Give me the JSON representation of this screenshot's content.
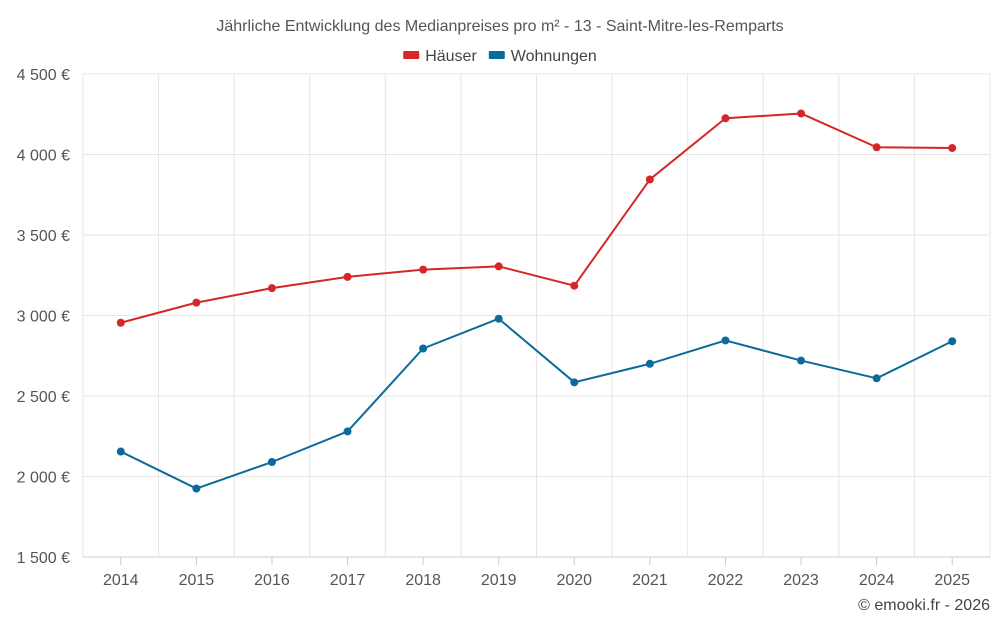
{
  "chart_data": {
    "type": "line",
    "title": "Jährliche Entwicklung des Medianpreises pro m² - 13 - Saint-Mitre-les-Remparts",
    "categories": [
      "2014",
      "2015",
      "2016",
      "2017",
      "2018",
      "2019",
      "2020",
      "2021",
      "2022",
      "2023",
      "2024",
      "2025"
    ],
    "series": [
      {
        "name": "Häuser",
        "color": "#d62728",
        "values": [
          2955,
          3080,
          3170,
          3240,
          3285,
          3305,
          3185,
          3845,
          4225,
          4255,
          4045,
          4040
        ]
      },
      {
        "name": "Wohnungen",
        "color": "#0b6a9b",
        "values": [
          2155,
          1925,
          2090,
          2280,
          2795,
          2980,
          2585,
          2700,
          2845,
          2720,
          2610,
          2840
        ]
      }
    ],
    "ylim": [
      1500,
      4500
    ],
    "yticks": [
      1500,
      2000,
      2500,
      3000,
      3500,
      4000,
      4500
    ],
    "ytick_labels": [
      "1 500 €",
      "2 000 €",
      "2 500 €",
      "3 000 €",
      "3 500 €",
      "4 000 €",
      "4 500 €"
    ],
    "xlabel": "",
    "ylabel": "",
    "grid": true,
    "legend_position": "top-center",
    "credit": "© emooki.fr - 2026"
  }
}
